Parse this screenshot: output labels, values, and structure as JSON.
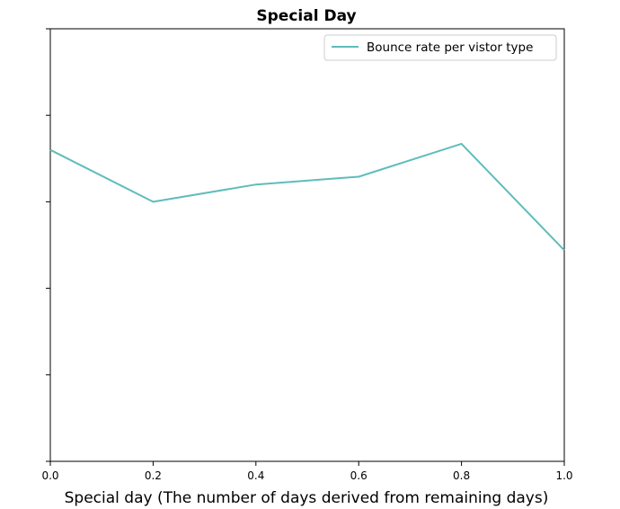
{
  "chart_data": {
    "type": "line",
    "title": "Special Day",
    "xlabel": "Special day (The number of days derived from remaining days)",
    "ylabel": "",
    "xlim": [
      0.0,
      1.0
    ],
    "ylim": [
      0,
      5
    ],
    "x_ticks": [
      "0.0",
      "0.2",
      "0.4",
      "0.6",
      "0.8",
      "1.0"
    ],
    "y_tick_values": [
      0,
      1,
      2,
      3,
      4,
      5
    ],
    "y_tick_labels_shown": false,
    "grid": false,
    "legend_position": "top-right",
    "series": [
      {
        "name": "Bounce rate per vistor type",
        "color": "#5fbcbc",
        "x": [
          0.0,
          0.2,
          0.4,
          0.6,
          0.8,
          1.0
        ],
        "y": [
          3.6,
          3.0,
          3.2,
          3.29,
          3.67,
          2.44
        ]
      }
    ]
  }
}
